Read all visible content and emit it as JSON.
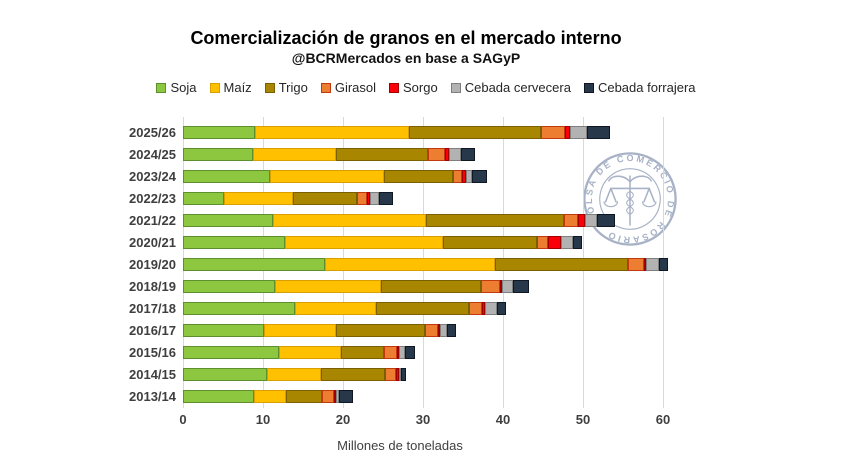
{
  "watermark": {
    "ring_text": "BOLSA DE COMERCIO DE ROSARIO",
    "color": "#a8b2c6"
  },
  "axis": {
    "ticks": [
      0,
      10,
      20,
      30,
      40,
      50,
      60
    ]
  },
  "chart_data": {
    "type": "bar",
    "orientation": "horizontal",
    "stacked": true,
    "title": "Comercialización de granos en el mercado interno",
    "subtitle": "@BCRMercados en base a SAGyP",
    "xlabel": "Millones de toneladas",
    "xlim": [
      0,
      60
    ],
    "grid": true,
    "legend_position": "top",
    "categories": [
      "2025/26",
      "2024/25",
      "2023/24",
      "2022/23",
      "2021/22",
      "2020/21",
      "2019/20",
      "2018/19",
      "2017/18",
      "2016/17",
      "2015/16",
      "2014/15",
      "2013/14"
    ],
    "series": [
      {
        "name": "Soja",
        "color": "#8dc63f",
        "border": "#5d8f2e",
        "values": [
          9.0,
          8.8,
          10.9,
          5.1,
          11.2,
          12.7,
          17.7,
          11.5,
          14.0,
          10.1,
          12.0,
          10.5,
          8.9
        ]
      },
      {
        "name": "Maíz",
        "color": "#ffc000",
        "border": "#d99e00",
        "values": [
          19.3,
          10.3,
          14.2,
          8.7,
          19.2,
          19.8,
          21.3,
          13.2,
          10.1,
          9.0,
          7.8,
          6.8,
          4.0
        ]
      },
      {
        "name": "Trigo",
        "color": "#a98600",
        "border": "#7a6000",
        "values": [
          16.5,
          11.5,
          8.6,
          7.9,
          17.2,
          11.7,
          16.6,
          12.6,
          11.6,
          11.1,
          5.3,
          7.9,
          4.5
        ]
      },
      {
        "name": "Girasol",
        "color": "#ed7d31",
        "border": "#c0390f",
        "values": [
          3.0,
          2.1,
          1.2,
          1.3,
          1.8,
          1.4,
          2.0,
          2.3,
          1.7,
          1.7,
          1.6,
          1.4,
          1.5
        ]
      },
      {
        "name": "Sorgo",
        "color": "#fb0009",
        "border": "#a00000",
        "values": [
          0.6,
          0.5,
          0.5,
          0.4,
          0.9,
          1.6,
          0.2,
          0.2,
          0.3,
          0.2,
          0.3,
          0.4,
          0.2
        ]
      },
      {
        "name": "Cebada cervecera",
        "color": "#b2b2b2",
        "border": "#7f7f7f",
        "values": [
          2.1,
          1.5,
          0.7,
          1.1,
          1.5,
          1.5,
          1.7,
          1.4,
          1.5,
          0.9,
          0.8,
          0.2,
          0.3
        ]
      },
      {
        "name": "Cebada forrajera",
        "color": "#263849",
        "border": "#0f1822",
        "values": [
          2.9,
          1.8,
          1.9,
          1.7,
          2.2,
          1.2,
          1.1,
          2.0,
          1.2,
          1.1,
          1.2,
          0.6,
          1.8
        ]
      }
    ]
  }
}
